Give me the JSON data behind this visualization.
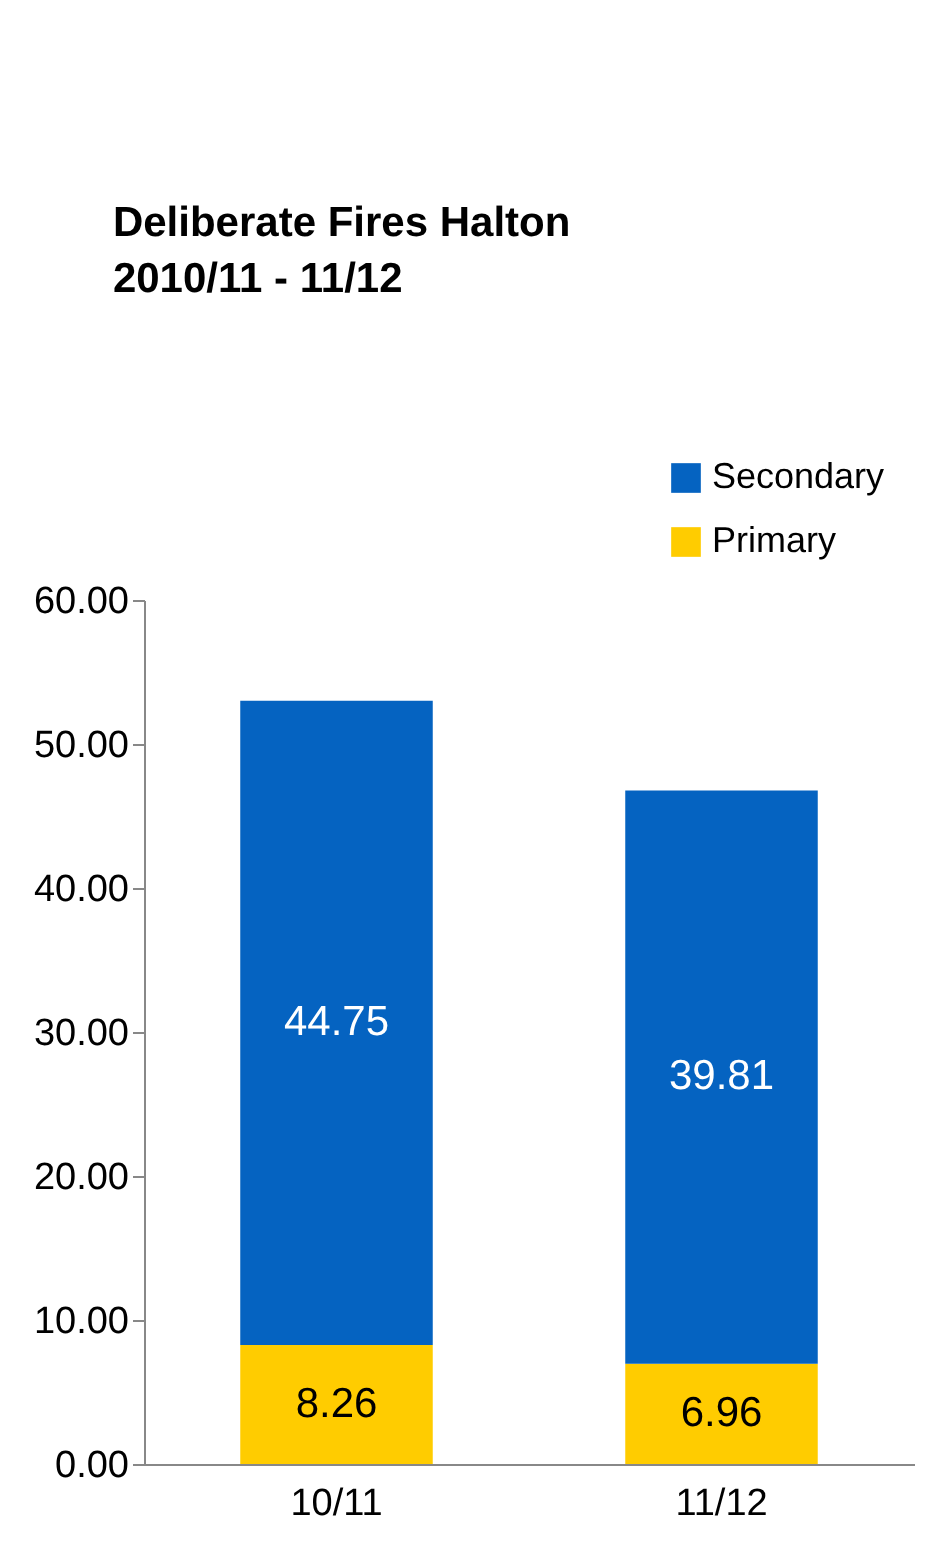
{
  "chart_data": {
    "type": "bar",
    "title": "Deliberate Fires  Halton\n2010/11 - 11/12",
    "categories": [
      "10/11",
      "11/12"
    ],
    "series": [
      {
        "name": "Primary",
        "color": "#ffcc00",
        "values": [
          8.26,
          6.96
        ]
      },
      {
        "name": "Secondary",
        "color": "#0563c1",
        "values": [
          44.75,
          39.81
        ]
      }
    ],
    "stacked": true,
    "data_labels": true,
    "ylim": [
      0,
      60
    ],
    "yticks": [
      {
        "value": 0,
        "label": "0.00"
      },
      {
        "value": 10,
        "label": "10.00"
      },
      {
        "value": 20,
        "label": "20.00"
      },
      {
        "value": 30,
        "label": "30.00"
      },
      {
        "value": 40,
        "label": "40.00"
      },
      {
        "value": 50,
        "label": "50.00"
      },
      {
        "value": 60,
        "label": "60.00"
      }
    ],
    "grid": false,
    "legend": "top right"
  }
}
